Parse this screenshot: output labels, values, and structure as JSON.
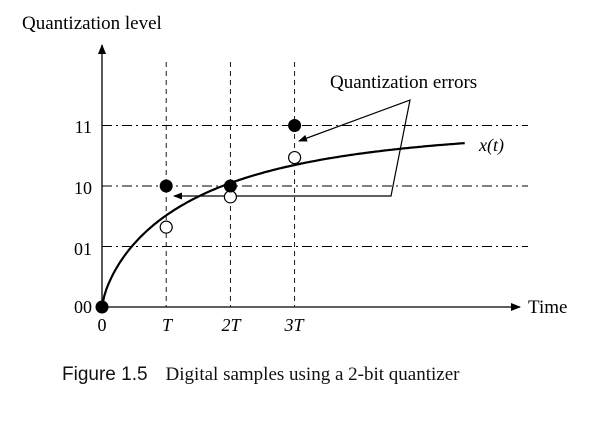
{
  "diagram": {
    "y_axis_label": "Quantization level",
    "x_axis_label": "Time",
    "y_levels": [
      "00",
      "01",
      "10",
      "11"
    ],
    "x_ticks": [
      {
        "label": "0",
        "italic": false
      },
      {
        "label": "T",
        "italic": true
      },
      {
        "label": "2T",
        "italic": true
      },
      {
        "label": "3T",
        "italic": true
      }
    ],
    "signal_label": "x(t)",
    "annotation": "Quantization errors",
    "samples": [
      {
        "time": "0",
        "actual_level": 0.0,
        "quantized": "00"
      },
      {
        "time": "T",
        "actual_level": 1.32,
        "quantized": "10"
      },
      {
        "time": "2T",
        "actual_level": 1.82,
        "quantized": "10"
      },
      {
        "time": "3T",
        "actual_level": 2.47,
        "quantized": "11"
      }
    ]
  },
  "caption": {
    "number": "Figure 1.5",
    "text": "Digital samples using a 2-bit quantizer"
  },
  "colors": {
    "ink": "#000000",
    "background": "#ffffff"
  }
}
